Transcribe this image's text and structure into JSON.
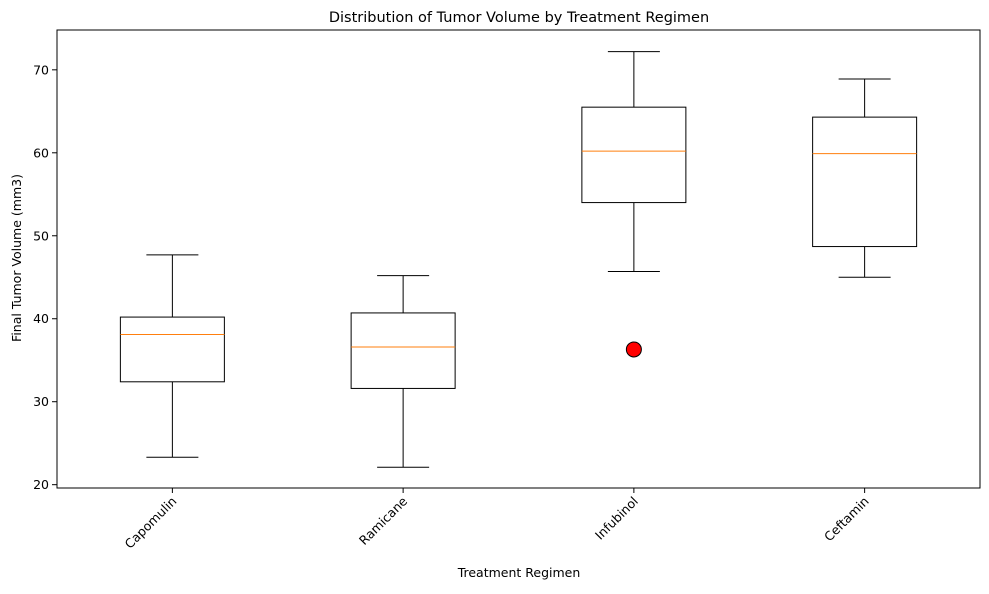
{
  "chart_data": {
    "type": "box",
    "title": "Distribution of Tumor Volume by Treatment Regimen",
    "xlabel": "Treatment Regimen",
    "ylabel": "Final Tumor Volume (mm3)",
    "ylim": [
      19.6,
      74.8
    ],
    "yticks": [
      20,
      30,
      40,
      50,
      60,
      70
    ],
    "grid": false,
    "categories": [
      "Capomulin",
      "Ramicane",
      "Infubinol",
      "Ceftamin"
    ],
    "boxes": [
      {
        "label": "Capomulin",
        "whislo": 23.3,
        "q1": 32.4,
        "med": 38.1,
        "q3": 40.2,
        "whishi": 47.7,
        "fliers": []
      },
      {
        "label": "Ramicane",
        "whislo": 22.1,
        "q1": 31.6,
        "med": 36.6,
        "q3": 40.7,
        "whishi": 45.2,
        "fliers": []
      },
      {
        "label": "Infubinol",
        "whislo": 45.7,
        "q1": 54.0,
        "med": 60.2,
        "q3": 65.5,
        "whishi": 72.2,
        "fliers": [
          36.3
        ]
      },
      {
        "label": "Ceftamin",
        "whislo": 45.0,
        "q1": 48.7,
        "med": 59.9,
        "q3": 64.3,
        "whishi": 68.9,
        "fliers": []
      }
    ],
    "colors": {
      "box": "#000000",
      "median": "#ff7f0e",
      "flier_fill": "#ff0000",
      "flier_edge": "#000000"
    }
  }
}
